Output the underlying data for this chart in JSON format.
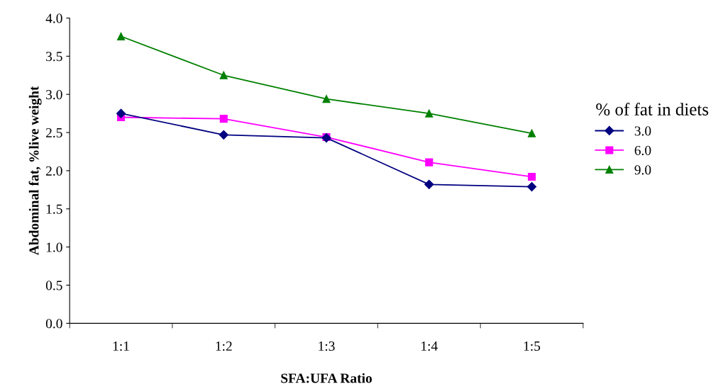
{
  "chart_data": {
    "type": "line",
    "xlabel": "SFA:UFA Ratio",
    "ylabel": "Abdominal fat, %live weight",
    "legend_title": "% of fat in diets",
    "categories": [
      "1:1",
      "1:2",
      "1:3",
      "1:4",
      "1:5"
    ],
    "series": [
      {
        "name": "3.0",
        "color": "#000080",
        "marker": "diamond",
        "values": [
          2.75,
          2.47,
          2.43,
          1.82,
          1.79
        ]
      },
      {
        "name": "6.0",
        "color": "#ff00ff",
        "marker": "square",
        "values": [
          2.7,
          2.68,
          2.44,
          2.11,
          1.92
        ]
      },
      {
        "name": "9.0",
        "color": "#008000",
        "marker": "triangle",
        "values": [
          3.76,
          3.25,
          2.94,
          2.75,
          2.49
        ]
      }
    ],
    "ylim": [
      0,
      4
    ],
    "yticks": [
      {
        "value": 0,
        "label": "0.0"
      },
      {
        "value": 0.5,
        "label": "0.5"
      },
      {
        "value": 1,
        "label": "1.0"
      },
      {
        "value": 1.5,
        "label": "1.5"
      },
      {
        "value": 2,
        "label": "2.0"
      },
      {
        "value": 2.5,
        "label": "2.5"
      },
      {
        "value": 3,
        "label": "3.0"
      },
      {
        "value": 3.5,
        "label": "3.5"
      },
      {
        "value": 4,
        "label": "4.0"
      }
    ],
    "grid": false,
    "legend": "right",
    "line_style": "solid"
  }
}
